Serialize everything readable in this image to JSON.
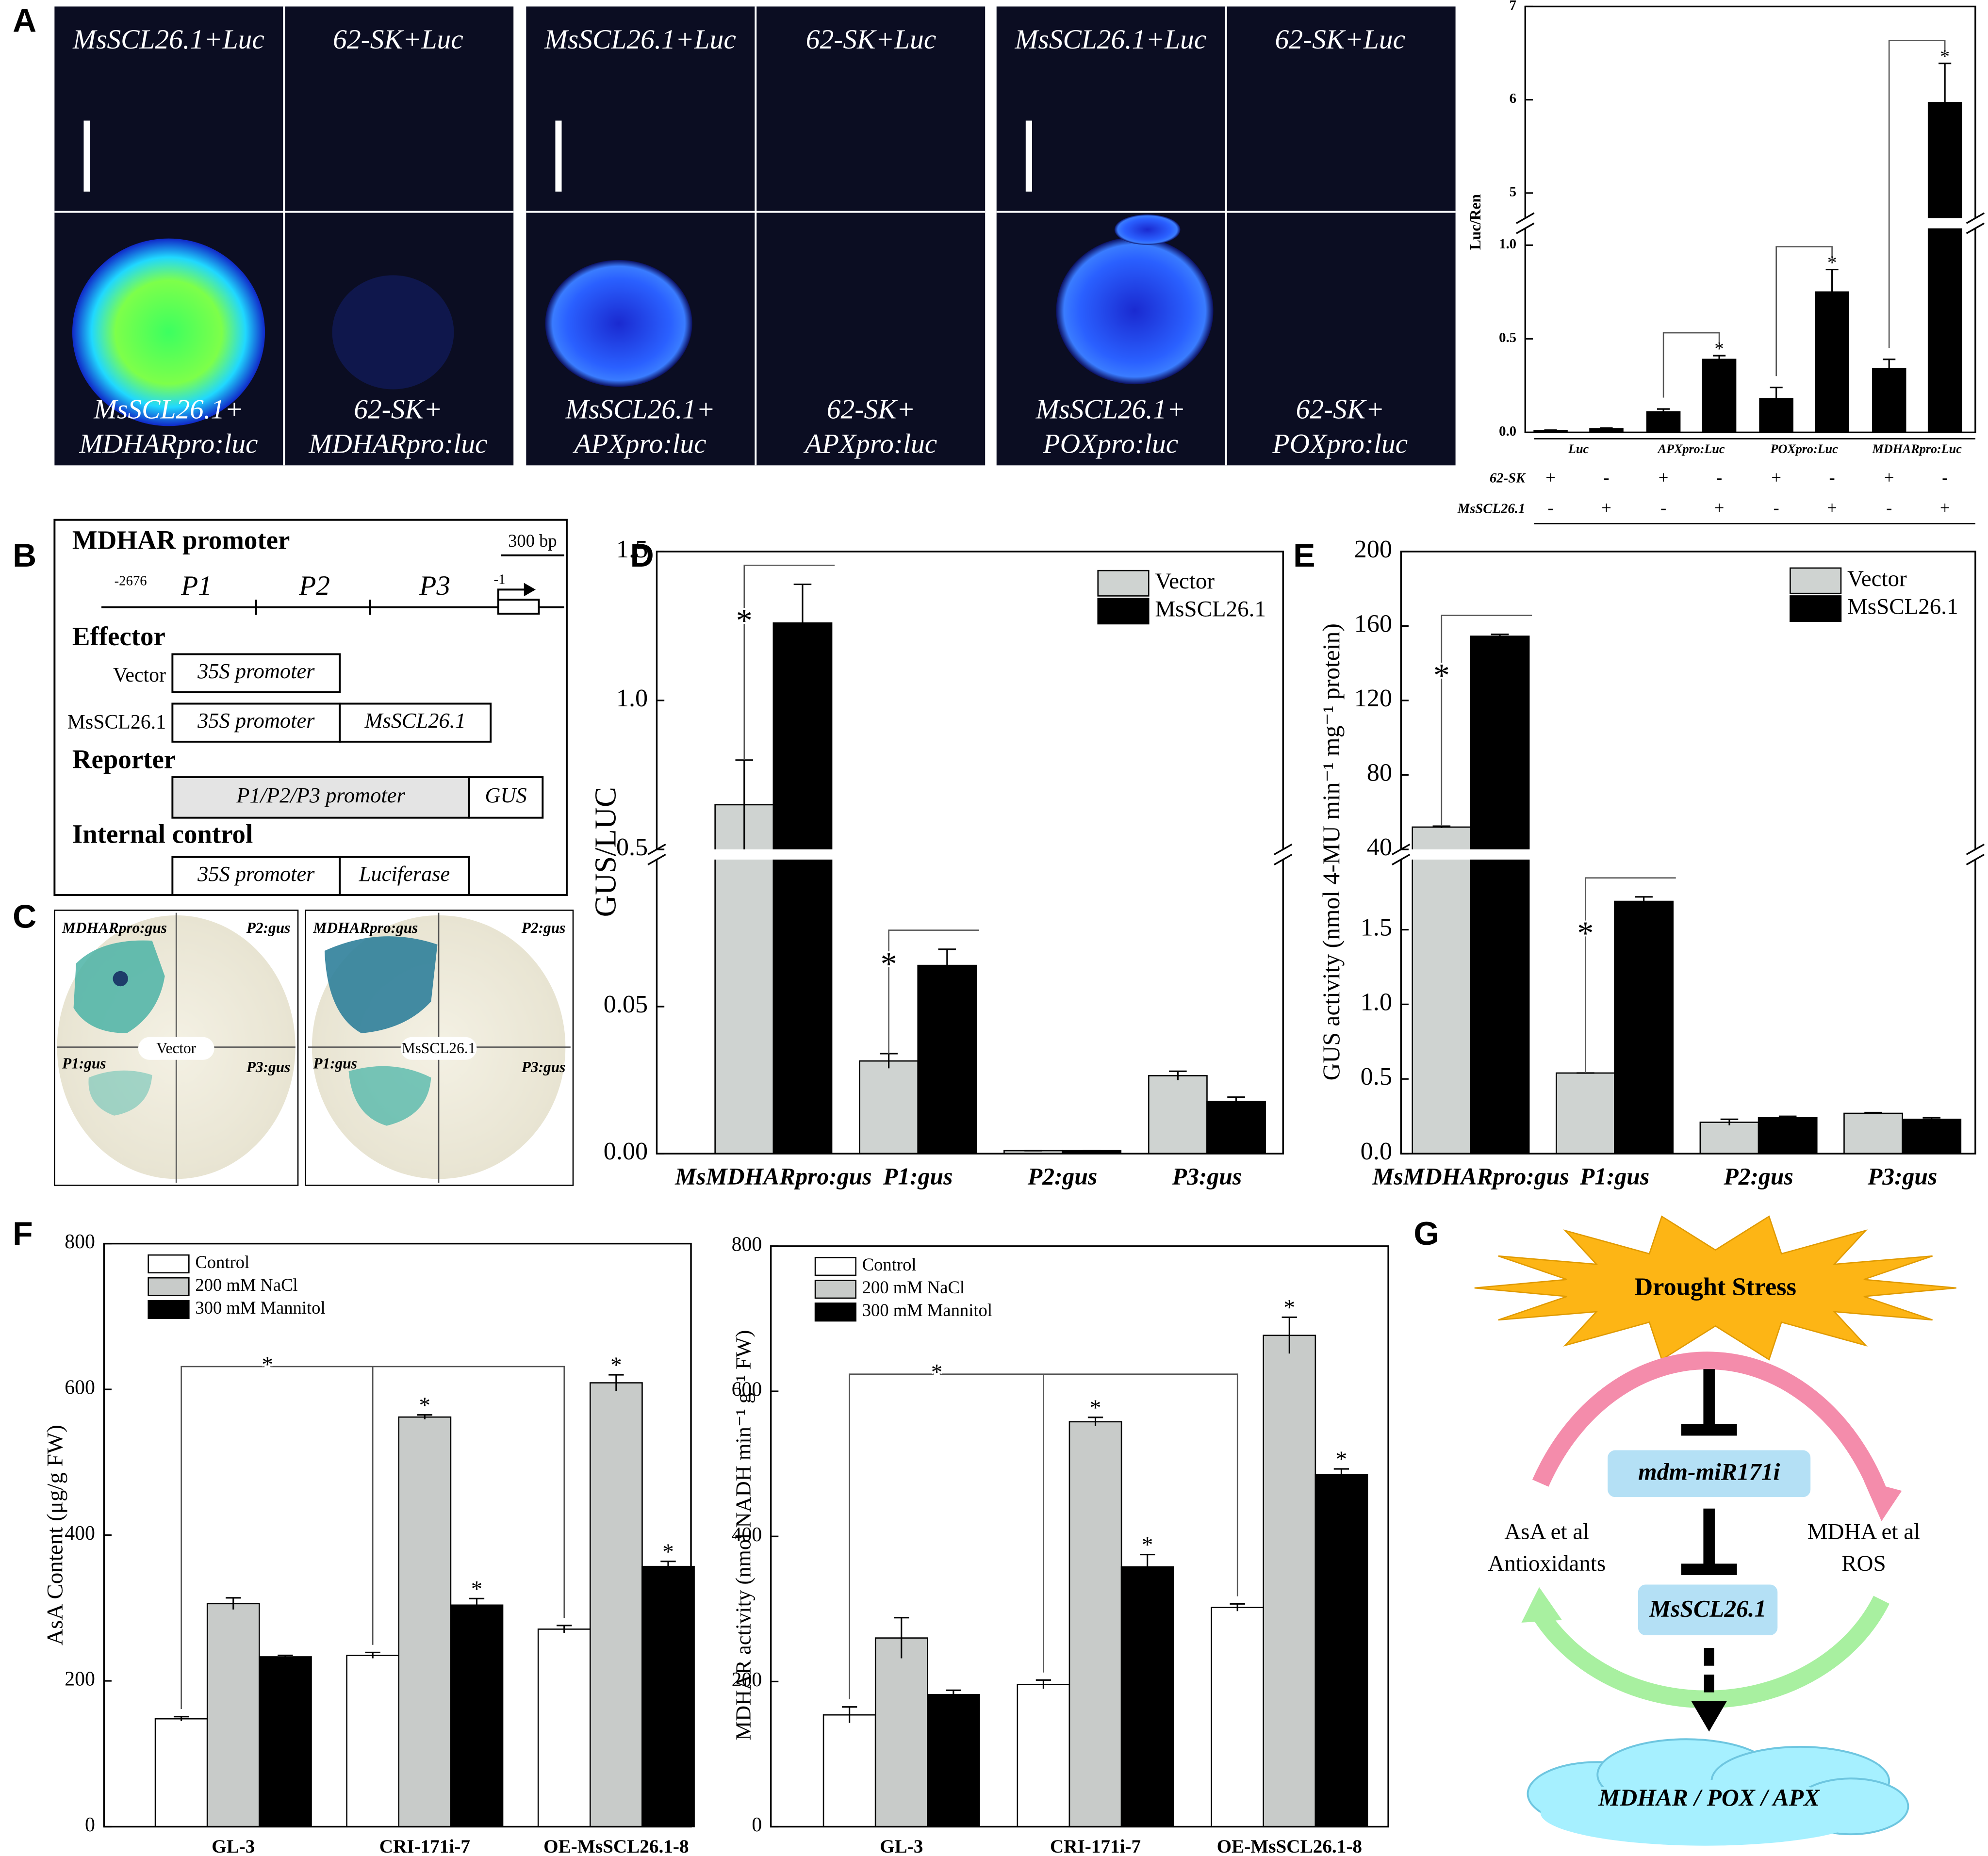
{
  "panel_labels": [
    "A",
    "B",
    "C",
    "D",
    "E",
    "F",
    "G"
  ],
  "panel_a": {
    "images": [
      {
        "top": "MsSCL26.1+Luc",
        "bottom": [
          "MsSCL26.1+",
          "MDHARpro:luc"
        ]
      },
      {
        "top": "62-SK+Luc",
        "bottom": [
          "62-SK+",
          "MDHARpro:luc"
        ]
      },
      {
        "top": "MsSCL26.1+Luc",
        "bottom": [
          "MsSCL26.1+",
          "APXpro:luc"
        ]
      },
      {
        "top": "62-SK+Luc",
        "bottom": [
          "62-SK+",
          "APXpro:luc"
        ]
      },
      {
        "top": "MsSCL26.1+Luc",
        "bottom": [
          "MsSCL26.1+",
          "POXpro:luc"
        ]
      },
      {
        "top": "62-SK+Luc",
        "bottom": [
          "62-SK+",
          "POXpro:luc"
        ]
      }
    ]
  },
  "panel_b": {
    "title": "MDHAR promoter",
    "scale": "300 bp",
    "start": "-2676",
    "end": "-1",
    "regions": [
      "P1",
      "P2",
      "P3"
    ],
    "effector": {
      "title": "Effector",
      "rows": [
        {
          "name": "Vector",
          "parts": [
            "35S promoter"
          ]
        },
        {
          "name": "MsSCL26.1",
          "parts": [
            "35S promoter",
            "MsSCL26.1"
          ]
        }
      ]
    },
    "reporter": {
      "title": "Reporter",
      "parts": [
        "P1/P2/P3 promoter",
        "GUS"
      ]
    },
    "internal_control": {
      "title": "Internal control",
      "parts": [
        "35S promoter",
        "Luciferase"
      ]
    }
  },
  "panel_c": {
    "leaves": [
      {
        "center": "Vector",
        "labels": [
          "MDHARpro:gus",
          "P2:gus",
          "P1:gus",
          "P3:gus"
        ]
      },
      {
        "center": "MsSCL26.1",
        "labels": [
          "MDHARpro:gus",
          "P2:gus",
          "P1:gus",
          "P3:gus"
        ]
      }
    ]
  },
  "panel_g": {
    "stress": "Drought Stress",
    "mirna": "mdm-miR171i",
    "target": "MsSCL26.1",
    "genes": "MDHAR / POX / APX",
    "left": [
      "AsA et al",
      "Antioxidants"
    ],
    "right": [
      "MDHA et al",
      "ROS"
    ]
  },
  "chart_data": [
    {
      "type": "bar",
      "ylabel": "Luc/Ren",
      "categories": [
        "Luc",
        "APXpro:Luc",
        "POXpro:Luc",
        "MDHARpro:Luc"
      ],
      "series": [
        {
          "name": "62-SK",
          "color": "#000000",
          "values": [
            0.01,
            0.11,
            0.18,
            0.34
          ],
          "errors": [
            0.002,
            0.015,
            0.06,
            0.05
          ]
        },
        {
          "name": "MsSCL26.1",
          "color": "#000000",
          "values": [
            0.02,
            0.39,
            0.75,
            5.97
          ],
          "errors": [
            0.003,
            0.02,
            0.12,
            0.42
          ],
          "markers": [
            null,
            "*",
            "*",
            "*"
          ]
        }
      ],
      "signs": [
        [
          "+",
          "-",
          "+",
          "-",
          "+",
          "-",
          "+",
          "-"
        ],
        [
          "-",
          "+",
          "-",
          "+",
          "-",
          "+",
          "-",
          "+"
        ]
      ],
      "ylim": [
        0,
        7
      ],
      "ybreak": [
        1.09,
        4.73
      ],
      "yticks": [
        {
          "value": 0,
          "label": "0.0"
        },
        0.5,
        {
          "value": 1,
          "label": "1.0"
        },
        5,
        6,
        7
      ]
    },
    {
      "type": "bar",
      "ylabel": "GUS/LUC",
      "categories": [
        "MsMDHARpro:gus",
        "P1:gus",
        "P2:gus",
        "P3:gus"
      ],
      "series": [
        {
          "name": "Vector",
          "color": "#cfd3d1",
          "values": [
            0.65,
            0.0315,
            0.001,
            0.0265
          ],
          "errors": [
            0.15,
            0.0025,
            0,
            0.0015
          ],
          "markers": [
            "*",
            "*",
            null,
            null
          ]
        },
        {
          "name": "MsSCL26.1",
          "color": "#000000",
          "values": [
            1.26,
            0.064,
            0.001,
            0.0177
          ],
          "errors": [
            0.13,
            0.0055,
            0,
            0.0015
          ]
        }
      ],
      "ylim": [
        0,
        1.5
      ],
      "ybreak": [
        0.1,
        0.5
      ],
      "yticks": [
        {
          "value": 0,
          "label": "0.00"
        },
        0.05,
        0.5,
        {
          "value": 1,
          "label": "1.0"
        },
        1.5
      ],
      "legend": "upper right"
    },
    {
      "type": "bar",
      "ylabel": "GUS activity (nmol 4-MU min⁻¹ mg⁻¹ protein)",
      "categories": [
        "MsMDHARpro:gus",
        "P1:gus",
        "P2:gus",
        "P3:gus"
      ],
      "series": [
        {
          "name": "Vector",
          "color": "#cfd3d1",
          "values": [
            52,
            0.54,
            0.21,
            0.27
          ],
          "errors": [
            0.5,
            0,
            0.02,
            0.005
          ],
          "markers": [
            "*",
            "*",
            null,
            null
          ]
        },
        {
          "name": "MsSCL26.1",
          "color": "#000000",
          "values": [
            154.5,
            1.69,
            0.24,
            0.23
          ],
          "errors": [
            1,
            0.03,
            0.01,
            0.01
          ]
        }
      ],
      "ylim": [
        0,
        200
      ],
      "ybreak": [
        1.97,
        40
      ],
      "yticks": [
        {
          "value": 0,
          "label": "0.0"
        },
        0.5,
        {
          "value": 1,
          "label": "1.0"
        },
        1.5,
        40,
        80,
        120,
        160,
        200
      ],
      "legend": "upper right"
    },
    {
      "type": "bar",
      "ylabel": "AsA Content (μg/g FW)",
      "categories": [
        "GL-3",
        "CRI-171i-7",
        "OE-MsSCL26.1-8"
      ],
      "series": [
        {
          "name": "Control",
          "color": "#ffffff",
          "values": [
            148,
            235,
            271
          ],
          "errors": [
            3,
            4,
            5
          ]
        },
        {
          "name": "200 mM NaCl",
          "color": "#c8cbc9",
          "values": [
            306,
            562,
            609
          ],
          "errors": [
            8,
            3,
            11
          ],
          "markers": [
            null,
            "*",
            "*"
          ]
        },
        {
          "name": "300 mM Mannitol",
          "color": "#000000",
          "values": [
            233,
            304,
            357
          ],
          "errors": [
            2,
            9,
            7
          ],
          "markers": [
            null,
            "*",
            "*"
          ]
        }
      ],
      "comparison_label": "*",
      "ylim": [
        0,
        800
      ],
      "yticks": [
        0,
        200,
        400,
        600,
        800
      ],
      "legend": "upper left"
    },
    {
      "type": "bar",
      "ylabel": "MDHAR activity (nmol NADH min⁻¹ g⁻¹ FW)",
      "categories": [
        "GL-3",
        "CRI-171i-7",
        "OE-MsSCL26.1-8"
      ],
      "series": [
        {
          "name": "Control",
          "color": "#ffffff",
          "values": [
            154,
            196,
            302
          ],
          "errors": [
            11,
            6,
            5
          ]
        },
        {
          "name": "200 mM NaCl",
          "color": "#c8cbc9",
          "values": [
            260,
            558,
            677
          ],
          "errors": [
            28,
            6,
            25
          ],
          "markers": [
            null,
            "*",
            "*"
          ]
        },
        {
          "name": "300 mM Mannitol",
          "color": "#000000",
          "values": [
            182,
            358,
            485
          ],
          "errors": [
            6,
            17,
            8
          ],
          "markers": [
            null,
            "*",
            "*"
          ]
        }
      ],
      "comparison_label": "*",
      "ylim": [
        0,
        800
      ],
      "yticks": [
        0,
        200,
        400,
        600,
        800
      ],
      "legend": "upper left"
    }
  ]
}
